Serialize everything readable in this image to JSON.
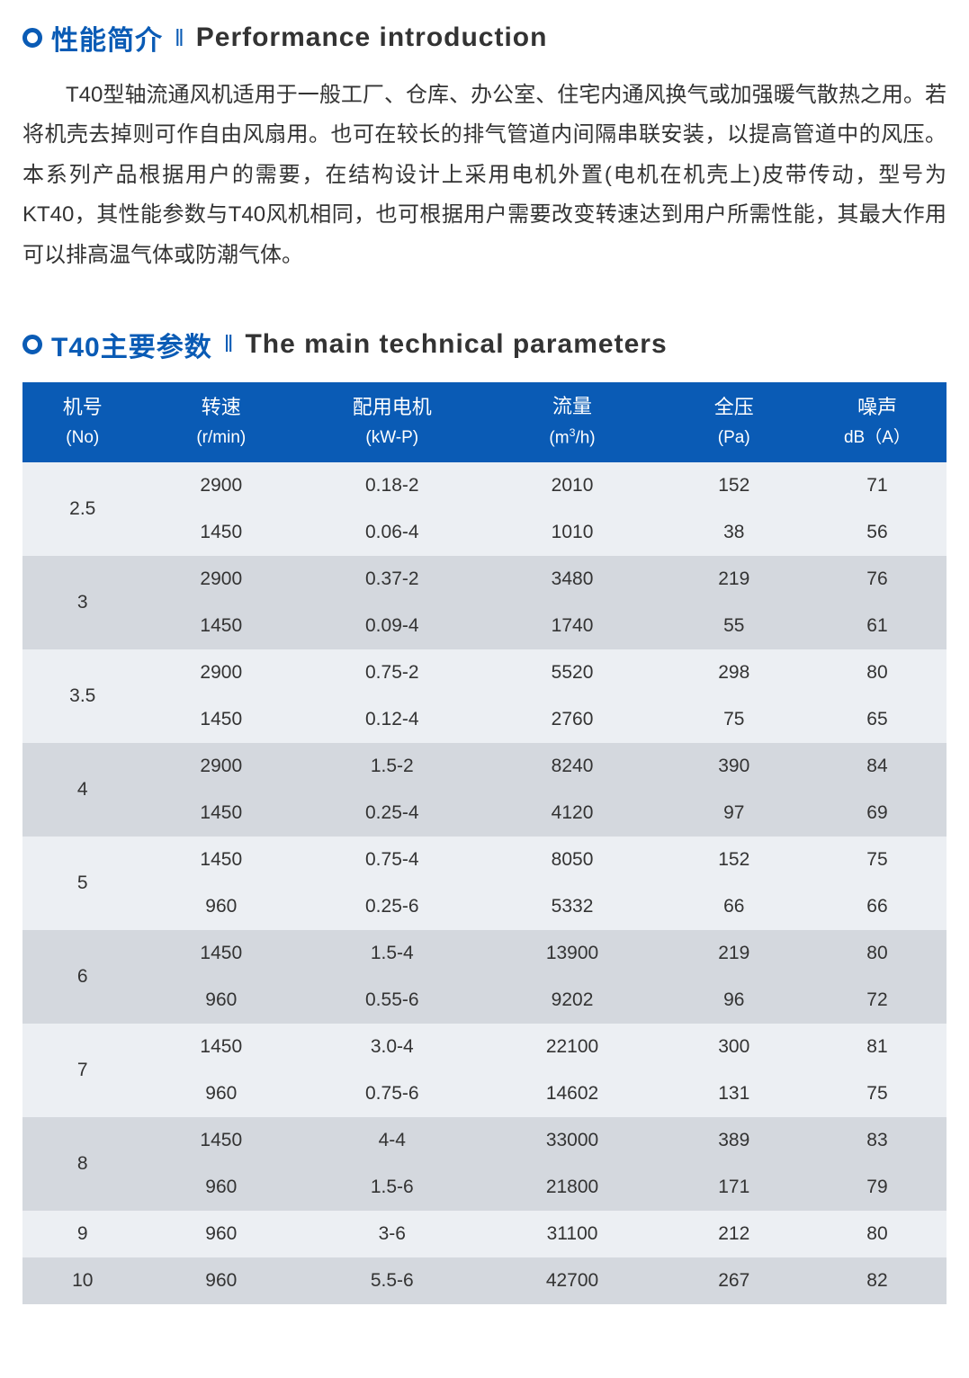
{
  "colors": {
    "brand_blue": "#0a5bb5",
    "text": "#333333",
    "band_light": "#eceff3",
    "band_dark": "#d4d8de",
    "white": "#ffffff"
  },
  "section1": {
    "title_cn": "性能简介",
    "title_en": "Performance  introduction",
    "sep": "‖",
    "body": "T40型轴流通风机适用于一般工厂、仓库、办公室、住宅内通风换气或加强暖气散热之用。若将机壳去掉则可作自由风扇用。也可在较长的排气管道内间隔串联安装，以提高管道中的风压。本系列产品根据用户的需要，在结构设计上采用电机外置(电机在机壳上)皮带传动，型号为KT40，其性能参数与T40风机相同，也可根据用户需要改变转速达到用户所需性能，其最大作用可以排高温气体或防潮气体。"
  },
  "section2": {
    "title_cn": "T40主要参数",
    "title_en": "The main technical  parameters",
    "sep": "‖"
  },
  "table": {
    "columns": [
      {
        "cn": "机号",
        "unit": "(No)"
      },
      {
        "cn": "转速",
        "unit": "(r/min)"
      },
      {
        "cn": "配用电机",
        "unit": "(kW-P)"
      },
      {
        "cn": "流量",
        "unit": "(m³/h)",
        "unit_html": "(m<sup>3</sup>/h)"
      },
      {
        "cn": "全压",
        "unit": "(Pa)"
      },
      {
        "cn": "噪声",
        "unit": "dB（A）"
      }
    ],
    "col_widths_pct": [
      13,
      17,
      20,
      19,
      16,
      15
    ],
    "groups": [
      {
        "model": "2.5",
        "band": "a",
        "rows": [
          {
            "speed": "2900",
            "motor": "0.18-2",
            "flow": "2010",
            "pressure": "152",
            "noise": "71"
          },
          {
            "speed": "1450",
            "motor": "0.06-4",
            "flow": "1010",
            "pressure": "38",
            "noise": "56"
          }
        ]
      },
      {
        "model": "3",
        "band": "b",
        "rows": [
          {
            "speed": "2900",
            "motor": "0.37-2",
            "flow": "3480",
            "pressure": "219",
            "noise": "76"
          },
          {
            "speed": "1450",
            "motor": "0.09-4",
            "flow": "1740",
            "pressure": "55",
            "noise": "61"
          }
        ]
      },
      {
        "model": "3.5",
        "band": "a",
        "rows": [
          {
            "speed": "2900",
            "motor": "0.75-2",
            "flow": "5520",
            "pressure": "298",
            "noise": "80"
          },
          {
            "speed": "1450",
            "motor": "0.12-4",
            "flow": "2760",
            "pressure": "75",
            "noise": "65"
          }
        ]
      },
      {
        "model": "4",
        "band": "b",
        "rows": [
          {
            "speed": "2900",
            "motor": "1.5-2",
            "flow": "8240",
            "pressure": "390",
            "noise": "84"
          },
          {
            "speed": "1450",
            "motor": "0.25-4",
            "flow": "4120",
            "pressure": "97",
            "noise": "69"
          }
        ]
      },
      {
        "model": "5",
        "band": "a",
        "rows": [
          {
            "speed": "1450",
            "motor": "0.75-4",
            "flow": "8050",
            "pressure": "152",
            "noise": "75"
          },
          {
            "speed": "960",
            "motor": "0.25-6",
            "flow": "5332",
            "pressure": "66",
            "noise": "66"
          }
        ]
      },
      {
        "model": "6",
        "band": "b",
        "rows": [
          {
            "speed": "1450",
            "motor": "1.5-4",
            "flow": "13900",
            "pressure": "219",
            "noise": "80"
          },
          {
            "speed": "960",
            "motor": "0.55-6",
            "flow": "9202",
            "pressure": "96",
            "noise": "72"
          }
        ]
      },
      {
        "model": "7",
        "band": "a",
        "rows": [
          {
            "speed": "1450",
            "motor": "3.0-4",
            "flow": "22100",
            "pressure": "300",
            "noise": "81"
          },
          {
            "speed": "960",
            "motor": "0.75-6",
            "flow": "14602",
            "pressure": "131",
            "noise": "75"
          }
        ]
      },
      {
        "model": "8",
        "band": "b",
        "rows": [
          {
            "speed": "1450",
            "motor": "4-4",
            "flow": "33000",
            "pressure": "389",
            "noise": "83"
          },
          {
            "speed": "960",
            "motor": "1.5-6",
            "flow": "21800",
            "pressure": "171",
            "noise": "79"
          }
        ]
      },
      {
        "model": "9",
        "band": "a",
        "rows": [
          {
            "speed": "960",
            "motor": "3-6",
            "flow": "31100",
            "pressure": "212",
            "noise": "80"
          }
        ]
      },
      {
        "model": "10",
        "band": "b",
        "rows": [
          {
            "speed": "960",
            "motor": "5.5-6",
            "flow": "42700",
            "pressure": "267",
            "noise": "82"
          }
        ]
      }
    ]
  }
}
